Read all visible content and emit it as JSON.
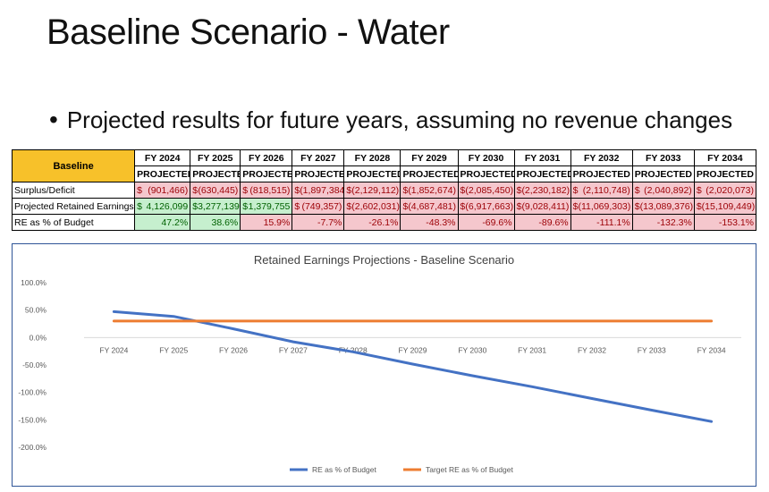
{
  "slide": {
    "title": "Baseline Scenario - Water",
    "bullet": "Projected results for future years, assuming no revenue changes"
  },
  "table": {
    "corner_label": "Baseline",
    "years": [
      "FY 2024",
      "FY 2025",
      "FY 2026",
      "FY 2027",
      "FY 2028",
      "FY 2029",
      "FY 2030",
      "FY 2031",
      "FY 2032",
      "FY 2033",
      "FY 2034"
    ],
    "subheader": "PROJECTED",
    "rows": [
      {
        "label": "Surplus/Deficit",
        "cells": [
          {
            "cur": "$",
            "text": "(901,466)",
            "tone": "neg"
          },
          {
            "cur": "$",
            "text": "(630,445)",
            "tone": "neg"
          },
          {
            "cur": "$",
            "text": "(818,515)",
            "tone": "neg"
          },
          {
            "cur": "$",
            "text": "(1,897,384)",
            "tone": "neg"
          },
          {
            "cur": "$",
            "text": "(2,129,112)",
            "tone": "neg"
          },
          {
            "cur": "$",
            "text": "(1,852,674)",
            "tone": "neg"
          },
          {
            "cur": "$",
            "text": "(2,085,450)",
            "tone": "neg"
          },
          {
            "cur": "$",
            "text": "(2,230,182)",
            "tone": "neg"
          },
          {
            "cur": "$",
            "text": "(2,110,748)",
            "tone": "neg"
          },
          {
            "cur": "$",
            "text": "(2,040,892)",
            "tone": "neg"
          },
          {
            "cur": "$",
            "text": "(2,020,073)",
            "tone": "neg"
          }
        ]
      },
      {
        "label": "Projected Retained Earnings",
        "cells": [
          {
            "cur": "$",
            "text": "4,126,099",
            "tone": "pos"
          },
          {
            "cur": "$",
            "text": "3,277,139",
            "tone": "pos"
          },
          {
            "cur": "$",
            "text": "1,379,755",
            "tone": "pos"
          },
          {
            "cur": "$",
            "text": "(749,357)",
            "tone": "neg"
          },
          {
            "cur": "$",
            "text": "(2,602,031)",
            "tone": "neg"
          },
          {
            "cur": "$",
            "text": "(4,687,481)",
            "tone": "neg"
          },
          {
            "cur": "$",
            "text": "(6,917,663)",
            "tone": "neg"
          },
          {
            "cur": "$",
            "text": "(9,028,411)",
            "tone": "neg"
          },
          {
            "cur": "$",
            "text": "(11,069,303)",
            "tone": "neg"
          },
          {
            "cur": "$",
            "text": "(13,089,376)",
            "tone": "neg"
          },
          {
            "cur": "$",
            "text": "(15,109,449)",
            "tone": "neg"
          }
        ]
      },
      {
        "label": "RE as % of Budget",
        "cells": [
          {
            "cur": "",
            "text": "47.2%",
            "tone": "pos"
          },
          {
            "cur": "",
            "text": "38.6%",
            "tone": "pos"
          },
          {
            "cur": "",
            "text": "15.9%",
            "tone": "neg"
          },
          {
            "cur": "",
            "text": "-7.7%",
            "tone": "neg"
          },
          {
            "cur": "",
            "text": "-26.1%",
            "tone": "neg"
          },
          {
            "cur": "",
            "text": "-48.3%",
            "tone": "neg"
          },
          {
            "cur": "",
            "text": "-69.6%",
            "tone": "neg"
          },
          {
            "cur": "",
            "text": "-89.6%",
            "tone": "neg"
          },
          {
            "cur": "",
            "text": "-111.1%",
            "tone": "neg"
          },
          {
            "cur": "",
            "text": "-132.3%",
            "tone": "neg"
          },
          {
            "cur": "",
            "text": "-153.1%",
            "tone": "neg"
          }
        ]
      }
    ],
    "colors": {
      "header_bg": "#f7c12a",
      "neg_bg": "#f5c7cd",
      "neg_text": "#9c0006",
      "pos_bg": "#c6efce",
      "pos_text": "#006100"
    }
  },
  "chart_data": {
    "type": "line",
    "title": "Retained Earnings Projections - Baseline Scenario",
    "categories": [
      "FY 2024",
      "FY 2025",
      "FY 2026",
      "FY 2027",
      "FY 2028",
      "FY 2029",
      "FY 2030",
      "FY 2031",
      "FY 2032",
      "FY 2033",
      "FY 2034"
    ],
    "y_ticks": [
      "100.0%",
      "50.0%",
      "0.0%",
      "-50.0%",
      "-100.0%",
      "-150.0%",
      "-200.0%"
    ],
    "ylim": [
      -200,
      100
    ],
    "legend_position": "bottom",
    "grid": false,
    "series": [
      {
        "name": "RE as % of Budget",
        "color": "#4472c4",
        "values": [
          47.2,
          38.6,
          15.9,
          -7.7,
          -26.1,
          -48.3,
          -69.6,
          -89.6,
          -111.1,
          -132.3,
          -153.1
        ]
      },
      {
        "name": "Target RE as % of Budget",
        "color": "#ed7d31",
        "values": [
          30,
          30,
          30,
          30,
          30,
          30,
          30,
          30,
          30,
          30,
          30
        ]
      }
    ]
  }
}
